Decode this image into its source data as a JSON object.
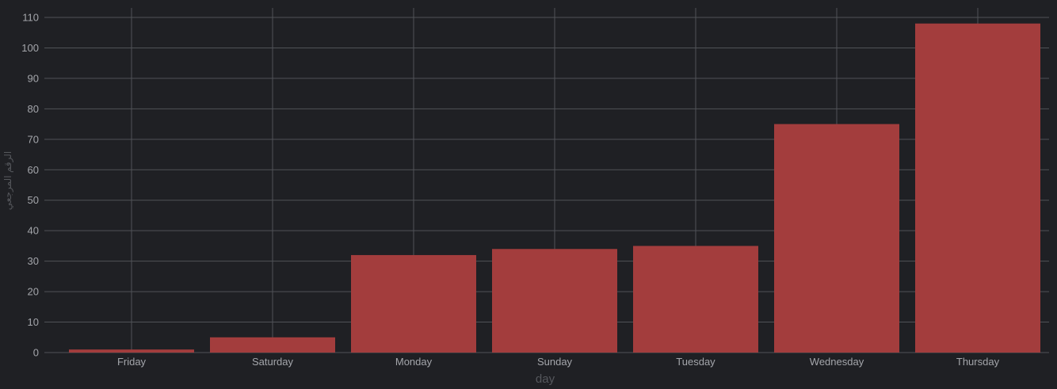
{
  "chart_data": {
    "type": "bar",
    "categories": [
      "Friday",
      "Saturday",
      "Monday",
      "Sunday",
      "Tuesday",
      "Wednesday",
      "Thursday"
    ],
    "values": [
      1,
      5,
      32,
      34,
      35,
      75,
      108
    ],
    "xlabel": "day",
    "ylabel": "الرقم المرجعي",
    "ylim": [
      0,
      110
    ],
    "yticks": [
      0,
      10,
      20,
      30,
      40,
      50,
      60,
      70,
      80,
      90,
      100,
      110
    ],
    "grid": true,
    "legend": "none"
  },
  "colors": {
    "background": "#1f2024",
    "bar": "#a33d3d",
    "grid": "#505257",
    "tick_text": "#a4a6ab",
    "axis_title": "#55575c"
  }
}
